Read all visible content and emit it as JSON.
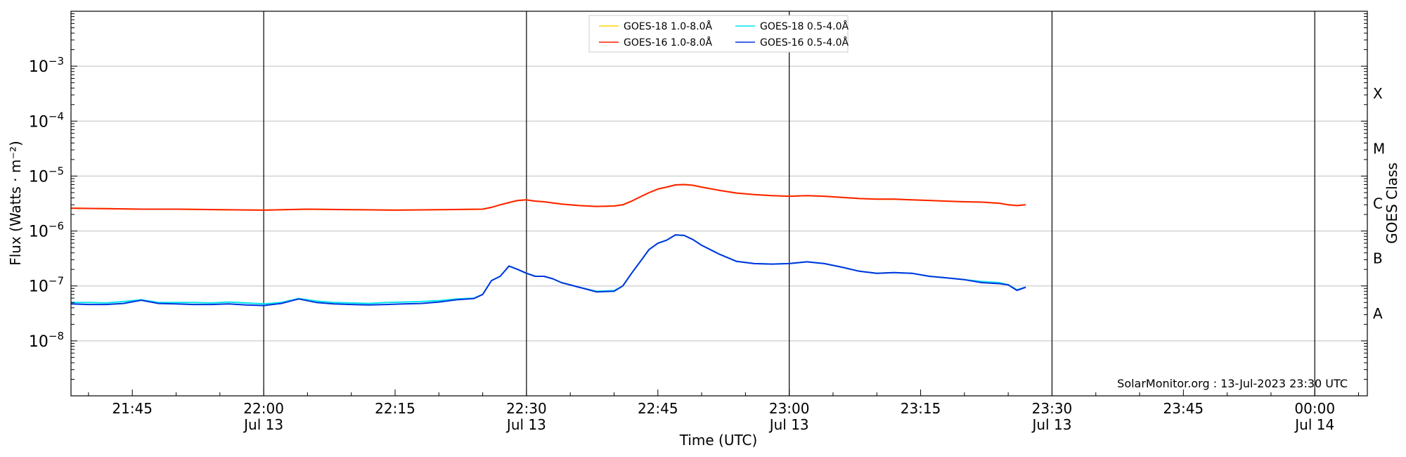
{
  "chart_data": {
    "type": "line",
    "title": "",
    "xlabel": "Time (UTC)",
    "ylabel": "Flux (Watts · m⁻²)",
    "ylabel_right": "GOES Class",
    "yscale": "log",
    "x_range": [
      "2023-07-13 21:38",
      "2023-07-14 00:06"
    ],
    "ylim": [
      1e-09,
      0.01
    ],
    "grid": "horizontal at decades; vertical lines every 30 min",
    "x_ticks": [
      {
        "time": "21:45",
        "label": "21:45",
        "sub": ""
      },
      {
        "time": "22:00",
        "label": "22:00",
        "sub": "Jul 13"
      },
      {
        "time": "22:15",
        "label": "22:15",
        "sub": ""
      },
      {
        "time": "22:30",
        "label": "22:30",
        "sub": "Jul 13"
      },
      {
        "time": "22:45",
        "label": "22:45",
        "sub": ""
      },
      {
        "time": "23:00",
        "label": "23:00",
        "sub": "Jul 13"
      },
      {
        "time": "23:15",
        "label": "23:15",
        "sub": ""
      },
      {
        "time": "23:30",
        "label": "23:30",
        "sub": "Jul 13"
      },
      {
        "time": "23:45",
        "label": "23:45",
        "sub": ""
      },
      {
        "time": "00:00",
        "label": "00:00",
        "sub": "Jul 14"
      }
    ],
    "vertical_lines": [
      "22:00",
      "22:30",
      "23:00",
      "23:30",
      "00:00"
    ],
    "y_ticks": [
      {
        "exp": -8,
        "base": "10",
        "sup": "−8"
      },
      {
        "exp": -7,
        "base": "10",
        "sup": "−7"
      },
      {
        "exp": -6,
        "base": "10",
        "sup": "−6"
      },
      {
        "exp": -5,
        "base": "10",
        "sup": "−5"
      },
      {
        "exp": -4,
        "base": "10",
        "sup": "−4"
      },
      {
        "exp": -3,
        "base": "10",
        "sup": "−3"
      }
    ],
    "goes_classes": [
      {
        "label": "A",
        "exp": -7.5
      },
      {
        "label": "B",
        "exp": -6.5
      },
      {
        "label": "C",
        "exp": -5.5
      },
      {
        "label": "M",
        "exp": -4.5
      },
      {
        "label": "X",
        "exp": -3.5
      }
    ],
    "legend_position": "top-center",
    "legend": [
      "GOES-18 1.0-8.0Å",
      "GOES-18 0.5-4.0Å",
      "GOES-16 1.0-8.0Å",
      "GOES-16 0.5-4.0Å"
    ],
    "annotation": "SolarMonitor.org : 13-Jul-2023 23:30 UTC",
    "series": [
      {
        "name": "GOES-18 1.0-8.0Å",
        "color": "#ffd700",
        "x": [
          "21:38",
          "21:42",
          "21:46",
          "21:50",
          "21:55",
          "22:00",
          "22:05",
          "22:10",
          "22:15",
          "22:20",
          "22:25",
          "22:26",
          "22:27",
          "22:28",
          "22:29",
          "22:30",
          "22:31",
          "22:32",
          "22:34",
          "22:36",
          "22:38",
          "22:40",
          "22:41",
          "22:42",
          "22:43",
          "22:44",
          "22:45",
          "22:46",
          "22:47",
          "22:48",
          "22:49",
          "22:50",
          "22:52",
          "22:54",
          "22:56",
          "22:58",
          "23:00",
          "23:02",
          "23:04",
          "23:06",
          "23:08",
          "23:10",
          "23:12",
          "23:14",
          "23:16",
          "23:18",
          "23:20",
          "23:22",
          "23:24",
          "23:25",
          "23:26",
          "23:27"
        ],
        "values": [
          2.6e-06,
          2.55e-06,
          2.5e-06,
          2.5e-06,
          2.45e-06,
          2.4e-06,
          2.5e-06,
          2.45e-06,
          2.4e-06,
          2.45e-06,
          2.5e-06,
          2.7e-06,
          3e-06,
          3.3e-06,
          3.6e-06,
          3.7e-06,
          3.5e-06,
          3.4e-06,
          3.1e-06,
          2.9e-06,
          2.8e-06,
          2.85e-06,
          3e-06,
          3.5e-06,
          4.2e-06,
          5e-06,
          5.8e-06,
          6.3e-06,
          6.9e-06,
          7e-06,
          6.8e-06,
          6.3e-06,
          5.5e-06,
          4.9e-06,
          4.6e-06,
          4.4e-06,
          4.3e-06,
          4.4e-06,
          4.3e-06,
          4.1e-06,
          3.9e-06,
          3.8e-06,
          3.8e-06,
          3.7e-06,
          3.6e-06,
          3.5e-06,
          3.4e-06,
          3.35e-06,
          3.2e-06,
          3e-06,
          2.9e-06,
          3e-06
        ]
      },
      {
        "name": "GOES-16 1.0-8.0Å",
        "color": "#ff2000",
        "x": [
          "21:38",
          "21:42",
          "21:46",
          "21:50",
          "21:55",
          "22:00",
          "22:05",
          "22:10",
          "22:15",
          "22:20",
          "22:25",
          "22:26",
          "22:27",
          "22:28",
          "22:29",
          "22:30",
          "22:31",
          "22:32",
          "22:34",
          "22:36",
          "22:38",
          "22:40",
          "22:41",
          "22:42",
          "22:43",
          "22:44",
          "22:45",
          "22:46",
          "22:47",
          "22:48",
          "22:49",
          "22:50",
          "22:52",
          "22:54",
          "22:56",
          "22:58",
          "23:00",
          "23:02",
          "23:04",
          "23:06",
          "23:08",
          "23:10",
          "23:12",
          "23:14",
          "23:16",
          "23:18",
          "23:20",
          "23:22",
          "23:24",
          "23:25",
          "23:26",
          "23:27"
        ],
        "values": [
          2.6e-06,
          2.55e-06,
          2.5e-06,
          2.5e-06,
          2.45e-06,
          2.4e-06,
          2.5e-06,
          2.45e-06,
          2.4e-06,
          2.45e-06,
          2.5e-06,
          2.7e-06,
          3e-06,
          3.3e-06,
          3.6e-06,
          3.7e-06,
          3.5e-06,
          3.4e-06,
          3.1e-06,
          2.9e-06,
          2.8e-06,
          2.85e-06,
          3e-06,
          3.5e-06,
          4.2e-06,
          5e-06,
          5.8e-06,
          6.3e-06,
          6.9e-06,
          7e-06,
          6.8e-06,
          6.3e-06,
          5.5e-06,
          4.9e-06,
          4.6e-06,
          4.4e-06,
          4.3e-06,
          4.4e-06,
          4.3e-06,
          4.1e-06,
          3.9e-06,
          3.8e-06,
          3.8e-06,
          3.7e-06,
          3.6e-06,
          3.5e-06,
          3.4e-06,
          3.35e-06,
          3.2e-06,
          3e-06,
          2.9e-06,
          3e-06
        ]
      },
      {
        "name": "GOES-18 0.5-4.0Å",
        "color": "#00e5ee",
        "x": [
          "21:38",
          "21:40",
          "21:42",
          "21:44",
          "21:46",
          "21:48",
          "21:50",
          "21:52",
          "21:54",
          "21:56",
          "21:58",
          "22:00",
          "22:02",
          "22:04",
          "22:06",
          "22:08",
          "22:10",
          "22:12",
          "22:14",
          "22:16",
          "22:18",
          "22:20",
          "22:22",
          "22:24",
          "22:25",
          "22:26",
          "22:27",
          "22:28",
          "22:29",
          "22:30",
          "22:31",
          "22:32",
          "22:33",
          "22:34",
          "22:36",
          "22:38",
          "22:40",
          "22:41",
          "22:42",
          "22:43",
          "22:44",
          "22:45",
          "22:46",
          "22:47",
          "22:48",
          "22:49",
          "22:50",
          "22:52",
          "22:54",
          "22:56",
          "22:58",
          "23:00",
          "23:02",
          "23:04",
          "23:06",
          "23:08",
          "23:10",
          "23:12",
          "23:14",
          "23:16",
          "23:18",
          "23:20",
          "23:22",
          "23:24",
          "23:25",
          "23:26",
          "23:27"
        ],
        "values": [
          5e-08,
          5e-08,
          4.9e-08,
          5.2e-08,
          5.6e-08,
          5e-08,
          5e-08,
          5e-08,
          4.9e-08,
          5.1e-08,
          4.9e-08,
          4.7e-08,
          5e-08,
          5.9e-08,
          5.3e-08,
          5e-08,
          4.9e-08,
          4.8e-08,
          5e-08,
          5.1e-08,
          5.2e-08,
          5.4e-08,
          5.8e-08,
          6e-08,
          7e-08,
          1.25e-07,
          1.5e-07,
          2.3e-07,
          2e-07,
          1.7e-07,
          1.5e-07,
          1.5e-07,
          1.35e-07,
          1.15e-07,
          9.5e-08,
          8e-08,
          8.2e-08,
          1e-07,
          1.7e-07,
          2.8e-07,
          4.6e-07,
          6e-07,
          6.8e-07,
          8.5e-07,
          8.3e-07,
          7e-07,
          5.5e-07,
          3.8e-07,
          2.8e-07,
          2.55e-07,
          2.5e-07,
          2.55e-07,
          2.75e-07,
          2.55e-07,
          2.2e-07,
          1.85e-07,
          1.7e-07,
          1.75e-07,
          1.7e-07,
          1.5e-07,
          1.4e-07,
          1.3e-07,
          1.2e-07,
          1.15e-07,
          1.05e-07,
          8.5e-08,
          9.5e-08
        ]
      },
      {
        "name": "GOES-16 0.5-4.0Å",
        "color": "#0033dd",
        "x": [
          "21:38",
          "21:40",
          "21:42",
          "21:44",
          "21:46",
          "21:48",
          "21:50",
          "21:52",
          "21:54",
          "21:56",
          "21:58",
          "22:00",
          "22:02",
          "22:04",
          "22:06",
          "22:08",
          "22:10",
          "22:12",
          "22:14",
          "22:16",
          "22:18",
          "22:20",
          "22:22",
          "22:24",
          "22:25",
          "22:26",
          "22:27",
          "22:28",
          "22:29",
          "22:30",
          "22:31",
          "22:32",
          "22:33",
          "22:34",
          "22:36",
          "22:38",
          "22:40",
          "22:41",
          "22:42",
          "22:43",
          "22:44",
          "22:45",
          "22:46",
          "22:47",
          "22:48",
          "22:49",
          "22:50",
          "22:52",
          "22:54",
          "22:56",
          "22:58",
          "23:00",
          "23:02",
          "23:04",
          "23:06",
          "23:08",
          "23:10",
          "23:12",
          "23:14",
          "23:16",
          "23:18",
          "23:20",
          "23:22",
          "23:24",
          "23:25",
          "23:26",
          "23:27"
        ],
        "values": [
          4.7e-08,
          4.6e-08,
          4.6e-08,
          4.8e-08,
          5.5e-08,
          4.8e-08,
          4.7e-08,
          4.6e-08,
          4.6e-08,
          4.7e-08,
          4.5e-08,
          4.4e-08,
          4.8e-08,
          5.8e-08,
          5e-08,
          4.7e-08,
          4.6e-08,
          4.5e-08,
          4.6e-08,
          4.7e-08,
          4.8e-08,
          5.1e-08,
          5.6e-08,
          5.9e-08,
          7e-08,
          1.25e-07,
          1.5e-07,
          2.3e-07,
          2e-07,
          1.7e-07,
          1.5e-07,
          1.5e-07,
          1.35e-07,
          1.15e-07,
          9.5e-08,
          7.8e-08,
          8e-08,
          1e-07,
          1.7e-07,
          2.8e-07,
          4.6e-07,
          6e-07,
          6.8e-07,
          8.5e-07,
          8.3e-07,
          7e-07,
          5.5e-07,
          3.8e-07,
          2.8e-07,
          2.55e-07,
          2.5e-07,
          2.55e-07,
          2.75e-07,
          2.55e-07,
          2.2e-07,
          1.85e-07,
          1.7e-07,
          1.75e-07,
          1.7e-07,
          1.5e-07,
          1.4e-07,
          1.3e-07,
          1.15e-07,
          1.1e-07,
          1.05e-07,
          8.3e-08,
          9.5e-08
        ]
      }
    ]
  }
}
